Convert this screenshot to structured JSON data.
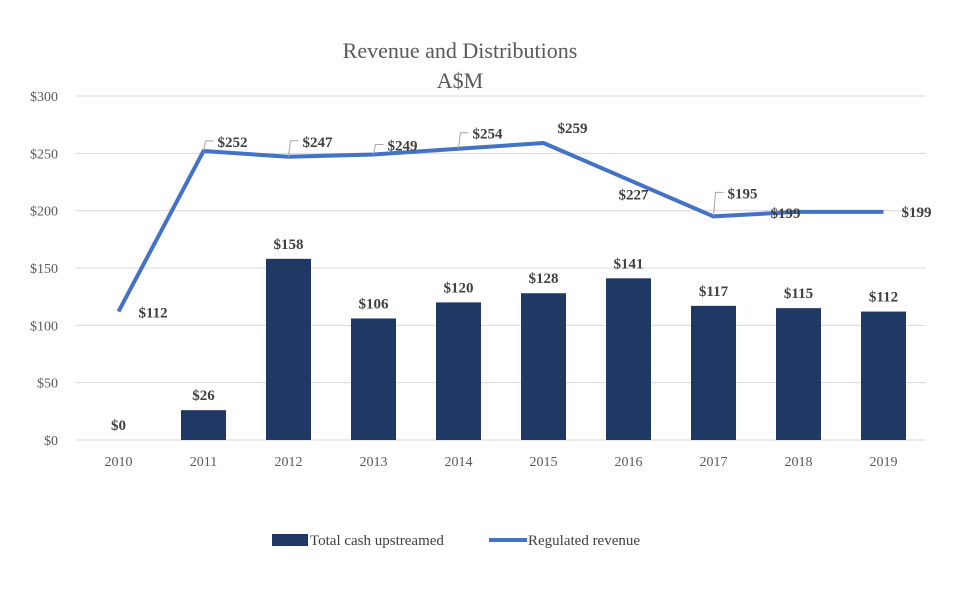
{
  "chart_data": {
    "type": "bar",
    "title": "Revenue and Distributions",
    "subtitle": "A$M",
    "xlabel": "",
    "ylabel": "",
    "categories": [
      "2010",
      "2011",
      "2012",
      "2013",
      "2014",
      "2015",
      "2016",
      "2017",
      "2018",
      "2019"
    ],
    "ylim": [
      0,
      300
    ],
    "yticks": [
      0,
      50,
      100,
      150,
      200,
      250,
      300
    ],
    "ytick_labels": [
      "$0",
      "$50",
      "$100",
      "$150",
      "$200",
      "$250",
      "$300"
    ],
    "grid": true,
    "legend_position": "bottom",
    "series": [
      {
        "name": "Total cash upstreamed",
        "type": "bar",
        "color": "#203864",
        "values": [
          0,
          26,
          158,
          106,
          120,
          128,
          141,
          117,
          115,
          112
        ],
        "labels": [
          "$0",
          "$26",
          "$158",
          "$106",
          "$120",
          "$128",
          "$141",
          "$117",
          "$115",
          "$112"
        ]
      },
      {
        "name": "Regulated revenue",
        "type": "line",
        "color": "#4472C4",
        "values": [
          112,
          252,
          247,
          249,
          254,
          259,
          227,
          195,
          199,
          199
        ],
        "labels": [
          "$112",
          "$252",
          "$247",
          "$249",
          "$254",
          "$259",
          "$227",
          "$195",
          "$199",
          "$199"
        ]
      }
    ]
  }
}
